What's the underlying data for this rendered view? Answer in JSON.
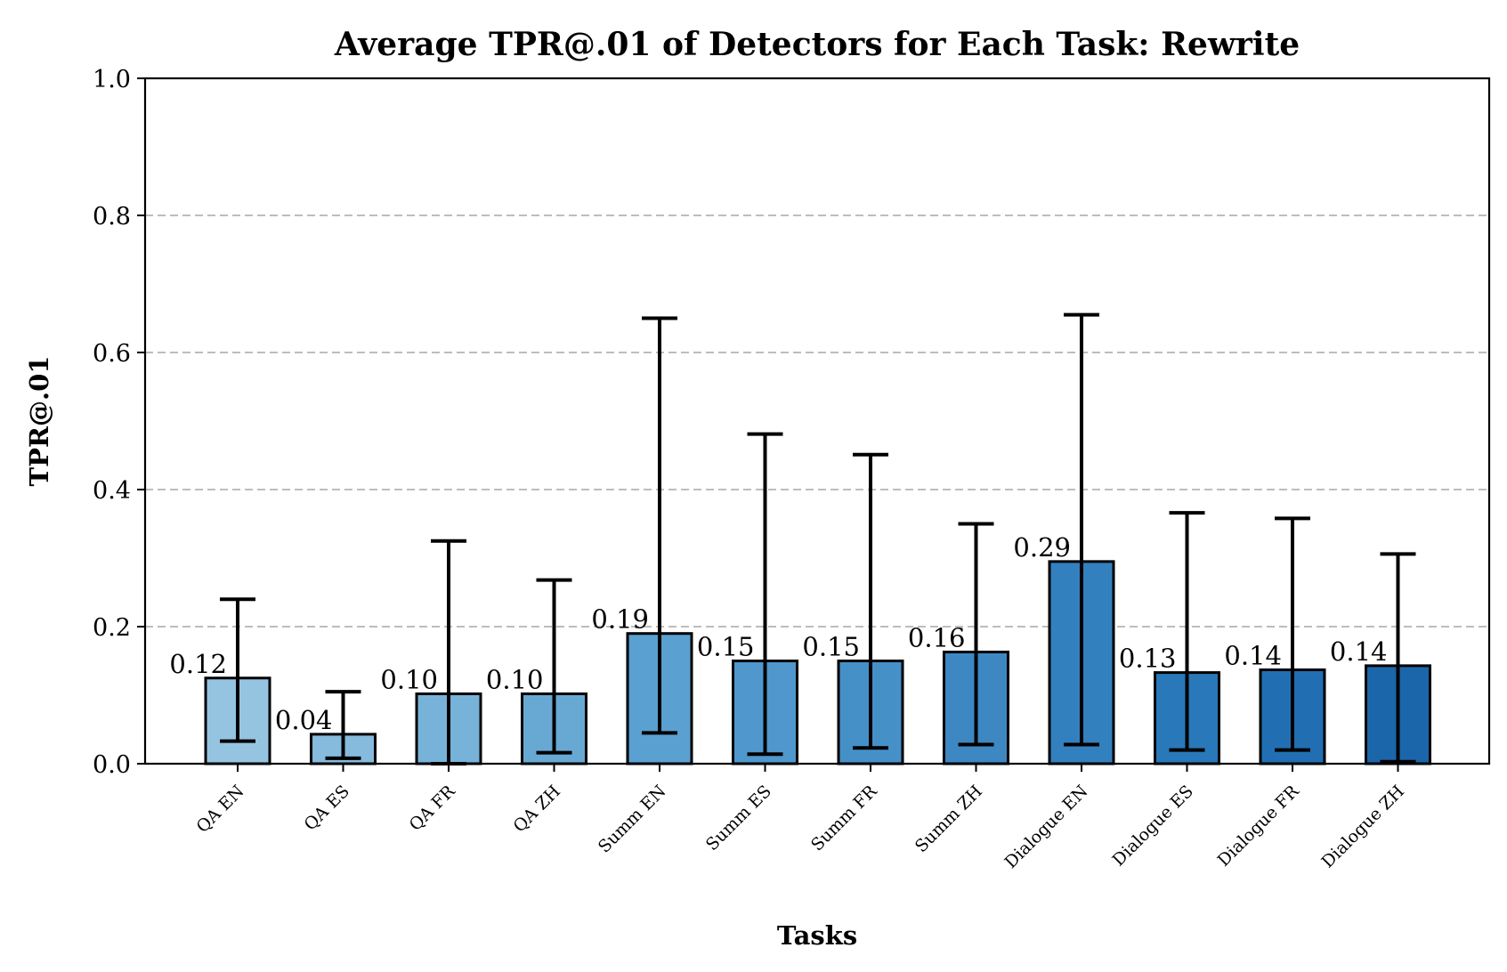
{
  "chart_data": {
    "type": "bar",
    "title": "Average TPR@.01 of Detectors for Each Task: Rewrite",
    "xlabel": "Tasks",
    "ylabel": "TPR@.01",
    "ylim": [
      0.0,
      1.0
    ],
    "yticks": [
      0.0,
      0.2,
      0.4,
      0.6,
      0.8,
      1.0
    ],
    "ytick_labels": [
      "0.0",
      "0.2",
      "0.4",
      "0.6",
      "0.8",
      "1.0"
    ],
    "grid": "y, dashed",
    "categories": [
      "QA EN",
      "QA ES",
      "QA FR",
      "QA ZH",
      "Summ EN",
      "Summ ES",
      "Summ FR",
      "Summ ZH",
      "Dialogue EN",
      "Dialogue ES",
      "Dialogue FR",
      "Dialogue ZH"
    ],
    "values": [
      0.125,
      0.043,
      0.102,
      0.102,
      0.19,
      0.15,
      0.15,
      0.163,
      0.295,
      0.133,
      0.137,
      0.143
    ],
    "value_labels": [
      "0.12",
      "0.04",
      "0.10",
      "0.10",
      "0.19",
      "0.15",
      "0.15",
      "0.16",
      "0.29",
      "0.13",
      "0.14",
      "0.14"
    ],
    "error_low": [
      0.033,
      0.008,
      0.0,
      0.016,
      0.045,
      0.014,
      0.023,
      0.028,
      0.028,
      0.02,
      0.02,
      0.003
    ],
    "error_high": [
      0.24,
      0.105,
      0.325,
      0.268,
      0.65,
      0.481,
      0.451,
      0.35,
      0.655,
      0.366,
      0.358,
      0.306
    ],
    "colors": [
      "#95c4e1",
      "#86bbdd",
      "#77b2d9",
      "#68a9d4",
      "#5aa0d0",
      "#4f97cc",
      "#4690c8",
      "#3d88c3",
      "#3380be",
      "#2978b9",
      "#216fb2",
      "#1b66aa"
    ]
  }
}
